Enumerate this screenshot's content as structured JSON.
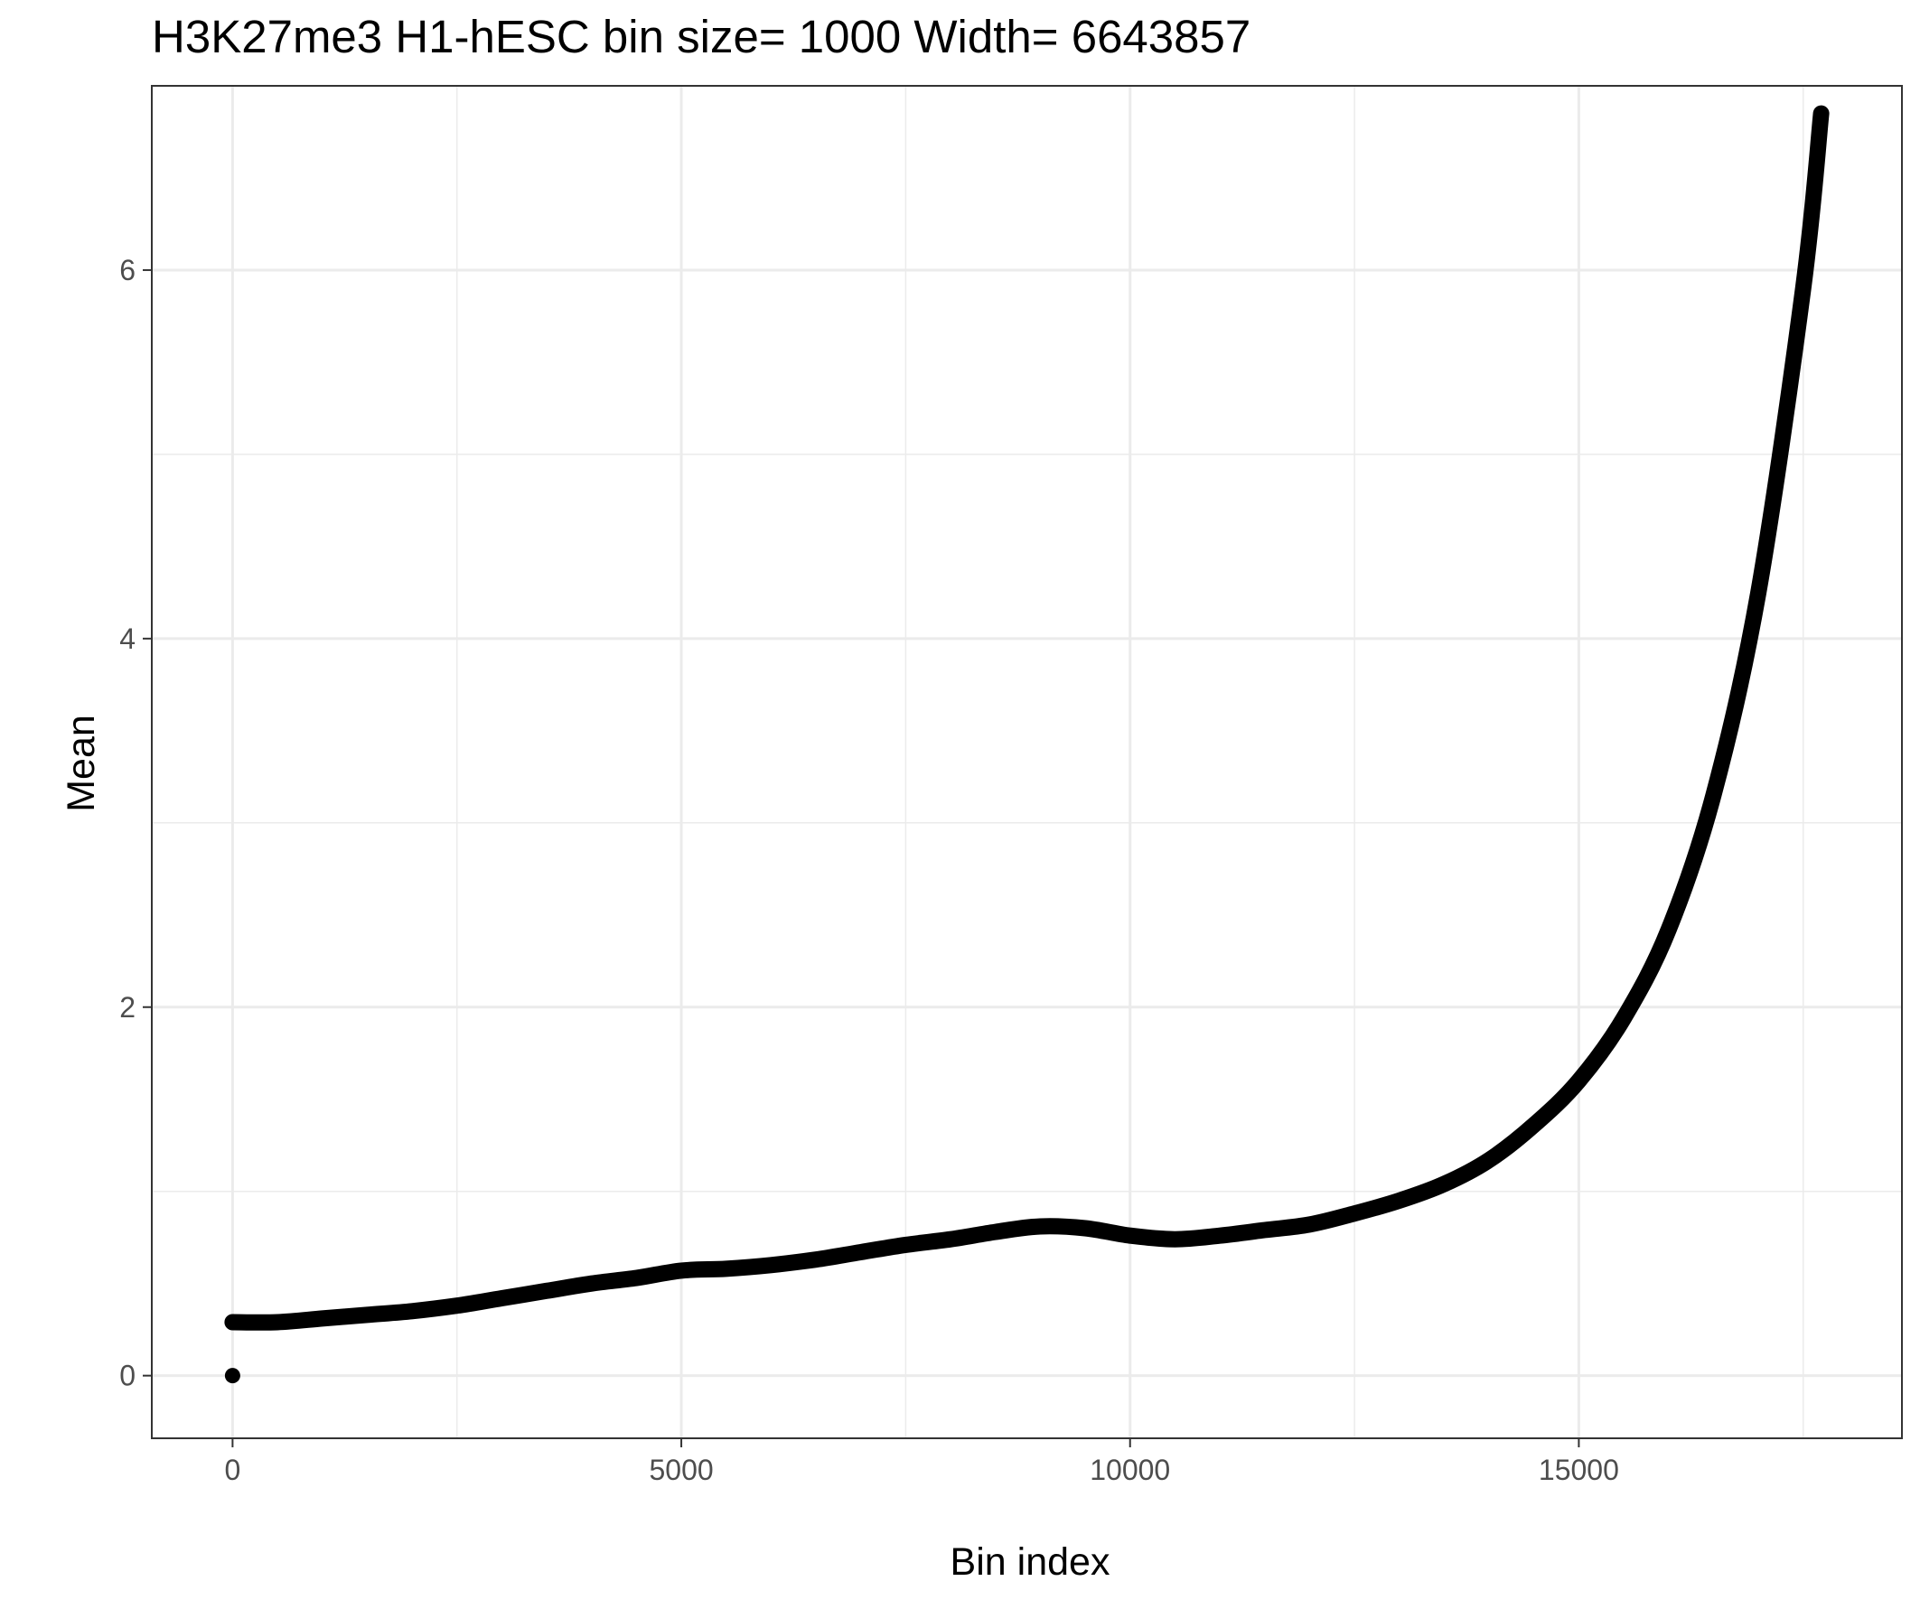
{
  "chart_data": {
    "type": "scatter",
    "title": "H3K27me3 H1-hESC  bin size=  1000  Width=  6643857",
    "xlabel": "Bin index",
    "ylabel": "Mean",
    "xlim": [
      -900,
      18600
    ],
    "ylim": [
      -0.34,
      7.0
    ],
    "x_ticks": [
      0,
      5000,
      10000,
      15000
    ],
    "y_ticks": [
      0,
      2,
      4,
      6
    ],
    "x_tick_labels": [
      "0",
      "5000",
      "10000",
      "15000"
    ],
    "y_tick_labels": [
      "0",
      "2",
      "4",
      "6"
    ],
    "x_minor_ticks": [
      2500,
      7500,
      12500,
      17500
    ],
    "y_minor_ticks": [
      1,
      3,
      5
    ],
    "grid": true,
    "legend": "none",
    "series": [
      {
        "color": "#000000",
        "points": [
          [
            0,
            0.29
          ],
          [
            500,
            0.29
          ],
          [
            1000,
            0.31
          ],
          [
            1500,
            0.33
          ],
          [
            2000,
            0.35
          ],
          [
            2500,
            0.38
          ],
          [
            3000,
            0.42
          ],
          [
            3500,
            0.46
          ],
          [
            4000,
            0.5
          ],
          [
            4500,
            0.53
          ],
          [
            5000,
            0.57
          ],
          [
            5500,
            0.58
          ],
          [
            6000,
            0.6
          ],
          [
            6500,
            0.63
          ],
          [
            7000,
            0.67
          ],
          [
            7500,
            0.71
          ],
          [
            8000,
            0.74
          ],
          [
            8500,
            0.78
          ],
          [
            9000,
            0.81
          ],
          [
            9500,
            0.8
          ],
          [
            10000,
            0.76
          ],
          [
            10500,
            0.74
          ],
          [
            11000,
            0.76
          ],
          [
            11500,
            0.79
          ],
          [
            12000,
            0.82
          ],
          [
            12500,
            0.88
          ],
          [
            13000,
            0.95
          ],
          [
            13500,
            1.04
          ],
          [
            14000,
            1.17
          ],
          [
            14500,
            1.36
          ],
          [
            15000,
            1.6
          ],
          [
            15500,
            1.94
          ],
          [
            16000,
            2.42
          ],
          [
            16500,
            3.15
          ],
          [
            17000,
            4.25
          ],
          [
            17500,
            5.9
          ],
          [
            17700,
            6.85
          ]
        ],
        "isolated_points": [
          [
            0,
            0.0
          ]
        ]
      }
    ]
  }
}
